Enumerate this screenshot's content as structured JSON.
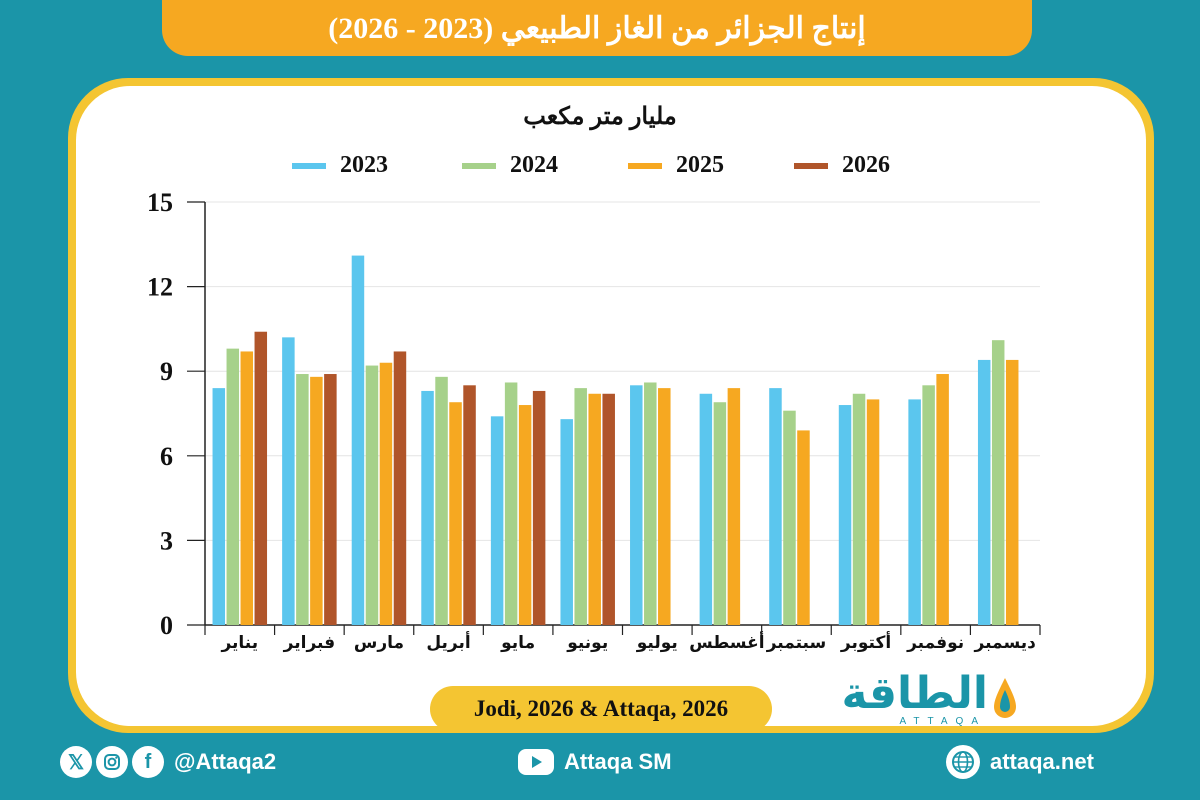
{
  "header": {
    "title": "إنتاج الجزائر من الغاز الطبيعي (2023 - 2026)"
  },
  "chart_data": {
    "type": "bar",
    "title": "إنتاج الجزائر من الغاز الطبيعي (2023 - 2026)",
    "ylabel": "مليار متر مكعب",
    "xlabel": "",
    "ylim": [
      0,
      15
    ],
    "yticks": [
      0,
      3,
      6,
      9,
      12,
      15
    ],
    "grid": true,
    "legend_position": "top",
    "categories": [
      "يناير",
      "فبراير",
      "مارس",
      "أبريل",
      "مايو",
      "يونيو",
      "يوليو",
      "أغسطس",
      "سبتمبر",
      "أكتوبر",
      "نوفمبر",
      "ديسمبر"
    ],
    "series": [
      {
        "name": "2023",
        "color": "#5bc6ee",
        "values": [
          8.4,
          10.2,
          13.1,
          8.3,
          7.4,
          7.3,
          8.5,
          8.2,
          8.4,
          7.8,
          8.0,
          9.4
        ]
      },
      {
        "name": "2024",
        "color": "#a6d18a",
        "values": [
          9.8,
          8.9,
          9.2,
          8.8,
          8.6,
          8.4,
          8.6,
          7.9,
          7.6,
          8.2,
          8.5,
          10.1
        ]
      },
      {
        "name": "2025",
        "color": "#f6a821",
        "values": [
          9.7,
          8.8,
          9.3,
          7.9,
          7.8,
          8.2,
          8.4,
          8.4,
          6.9,
          8.0,
          8.9,
          9.4
        ]
      },
      {
        "name": "2026",
        "color": "#b0552a",
        "values": [
          10.4,
          8.9,
          9.7,
          8.5,
          8.3,
          8.2,
          null,
          null,
          null,
          null,
          null,
          null
        ]
      }
    ]
  },
  "source": "Jodi, 2026 & Attaqa, 2026",
  "brand": {
    "name_ar": "الطاقة",
    "name_en": "ATTAQA"
  },
  "footer": {
    "social_handle": "@Attaqa2",
    "youtube": "Attaqa SM",
    "website": "attaqa.net"
  }
}
